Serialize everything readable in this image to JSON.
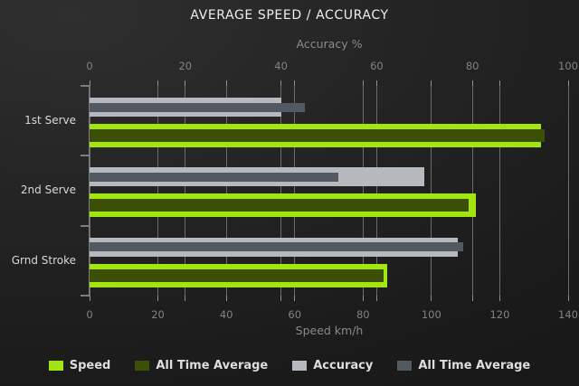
{
  "title": "AVERAGE SPEED / ACCURACY",
  "colors": {
    "speed_green": "#a3e50e",
    "all_time_speed_green": "#3b4f07",
    "accuracy_gray": "#b6bac0",
    "all_time_accuracy_gray": "#525960",
    "grid": "#6b6b6b",
    "axis_text": "#8a8a8a",
    "background": "#222222"
  },
  "chart_data": {
    "type": "bar",
    "orientation": "horizontal",
    "title": "AVERAGE SPEED / ACCURACY",
    "categories": [
      "1st Serve",
      "2nd Serve",
      "Grnd Stroke"
    ],
    "axes": {
      "top": {
        "label": "Accuracy %",
        "min": 0,
        "max": 100,
        "ticks": [
          0,
          20,
          40,
          60,
          80,
          100
        ]
      },
      "bottom": {
        "label": "Speed km/h",
        "min": 0,
        "max": 140,
        "ticks": [
          0,
          20,
          40,
          60,
          80,
          100,
          120,
          140
        ]
      }
    },
    "series": [
      {
        "name": "Speed",
        "axis": "bottom",
        "color": "#a3e50e",
        "values": [
          132,
          113,
          87
        ]
      },
      {
        "name": "All Time Average",
        "axis": "bottom",
        "color": "#3b4f07",
        "values": [
          133,
          111,
          86
        ]
      },
      {
        "name": "Accuracy",
        "axis": "top",
        "color": "#b6bac0",
        "values": [
          40,
          70,
          77
        ]
      },
      {
        "name": "All Time Average",
        "axis": "top",
        "color": "#525960",
        "values": [
          45,
          52,
          78
        ]
      }
    ],
    "grid": true,
    "legend_position": "bottom"
  }
}
